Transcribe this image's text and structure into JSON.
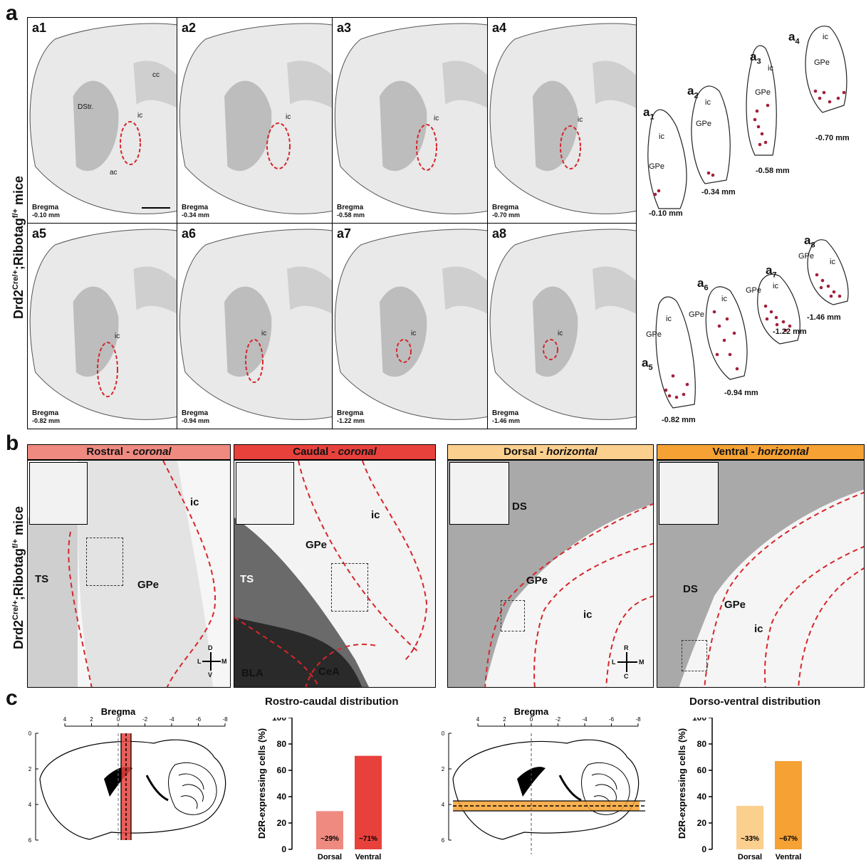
{
  "panel_a": {
    "letter": "a",
    "ylabel_prefix": "Drd2",
    "ylabel_sup1": "Cre/+",
    "ylabel_mid": ";Ribotag",
    "ylabel_sup2": "f/+",
    "ylabel_suffix": " mice",
    "bregma_word": "Bregma",
    "tiles": [
      {
        "id": "a1",
        "bregma": "-0.10 mm"
      },
      {
        "id": "a2",
        "bregma": "-0.34 mm"
      },
      {
        "id": "a3",
        "bregma": "-0.58 mm"
      },
      {
        "id": "a4",
        "bregma": "-0.70 mm"
      },
      {
        "id": "a5",
        "bregma": "-0.82 mm"
      },
      {
        "id": "a6",
        "bregma": "-0.94 mm"
      },
      {
        "id": "a7",
        "bregma": "-1.22 mm"
      },
      {
        "id": "a8",
        "bregma": "-1.46 mm"
      }
    ],
    "tile_labels": {
      "cc": "cc",
      "dstr": "DStr.",
      "ic": "ic",
      "ac": "ac"
    },
    "outlines": [
      {
        "base": "a",
        "sub": "1",
        "ic": "ic",
        "gpe": "GPe",
        "dist": "-0.10 mm"
      },
      {
        "base": "a",
        "sub": "2",
        "ic": "ic",
        "gpe": "GPe",
        "dist": "-0.34 mm"
      },
      {
        "base": "a",
        "sub": "3",
        "ic": "ic",
        "gpe": "GPe",
        "dist": "-0.58 mm"
      },
      {
        "base": "a",
        "sub": "4",
        "ic": "ic",
        "gpe": "GPe",
        "dist": "-0.70 mm"
      },
      {
        "base": "a",
        "sub": "5",
        "ic": "ic",
        "gpe": "GPe",
        "dist": "-0.82 mm"
      },
      {
        "base": "a",
        "sub": "6",
        "ic": "ic",
        "gpe": "GPe",
        "dist": "-0.94 mm"
      },
      {
        "base": "a",
        "sub": "7",
        "ic": "ic",
        "gpe": "GPe",
        "dist": "-1.22 mm"
      },
      {
        "base": "a",
        "sub": "8",
        "ic": "ic",
        "gpe": "GPe",
        "dist": "-1.46 mm"
      }
    ]
  },
  "panel_b": {
    "letter": "b",
    "headers": [
      {
        "main": "Rostral - ",
        "ital": "coronal",
        "color": "#ef8a80"
      },
      {
        "main": "Caudal - ",
        "ital": "coronal",
        "color": "#e8413c"
      },
      {
        "main": "Dorsal - ",
        "ital": "horizontal",
        "color": "#fbcf8e"
      },
      {
        "main": "Ventral - ",
        "ital": "horizontal",
        "color": "#f5a133"
      }
    ],
    "labels": {
      "ic": "ic",
      "gpe": "GPe",
      "ts": "TS",
      "bla": "BLA",
      "cea": "CeA",
      "ds": "DS"
    },
    "compass_coronal": {
      "top": "D",
      "bottom": "V",
      "left": "L",
      "right": "M"
    },
    "compass_horizontal": {
      "top": "R",
      "bottom": "C",
      "left": "L",
      "right": "M"
    }
  },
  "panel_c": {
    "letter": "c",
    "bregma_title": "Bregma",
    "ap_ticks": [
      "4",
      "2",
      "0",
      "-2",
      "-4",
      "-6",
      "-8"
    ],
    "dv_ticks": [
      "0",
      "2",
      "4",
      "6"
    ],
    "colors": {
      "rostral": "#ef8a80",
      "caudal": "#e8413c",
      "dorsal": "#fbcf8e",
      "ventral": "#f5a133"
    }
  },
  "chart_data": [
    {
      "type": "bar",
      "title": "Rostro-caudal distribution",
      "ylabel": "D2R-expressing cells (%)",
      "categories": [
        "Dorsal",
        "Ventral"
      ],
      "values": [
        29,
        71
      ],
      "value_labels": [
        "~29%",
        "~71%"
      ],
      "colors": [
        "#ef8a80",
        "#e8413c"
      ],
      "ylim": [
        0,
        100
      ],
      "yticks": [
        "0",
        "20",
        "40",
        "60",
        "80",
        "100"
      ]
    },
    {
      "type": "bar",
      "title": "Dorso-ventral distribution",
      "ylabel": "D2R-expressing cells (%)",
      "categories": [
        "Dorsal",
        "Ventral"
      ],
      "values": [
        33,
        67
      ],
      "value_labels": [
        "~33%",
        "~67%"
      ],
      "colors": [
        "#fbcf8e",
        "#f5a133"
      ],
      "ylim": [
        0,
        100
      ],
      "yticks": [
        "0",
        "20",
        "40",
        "60",
        "80",
        "100"
      ]
    }
  ]
}
